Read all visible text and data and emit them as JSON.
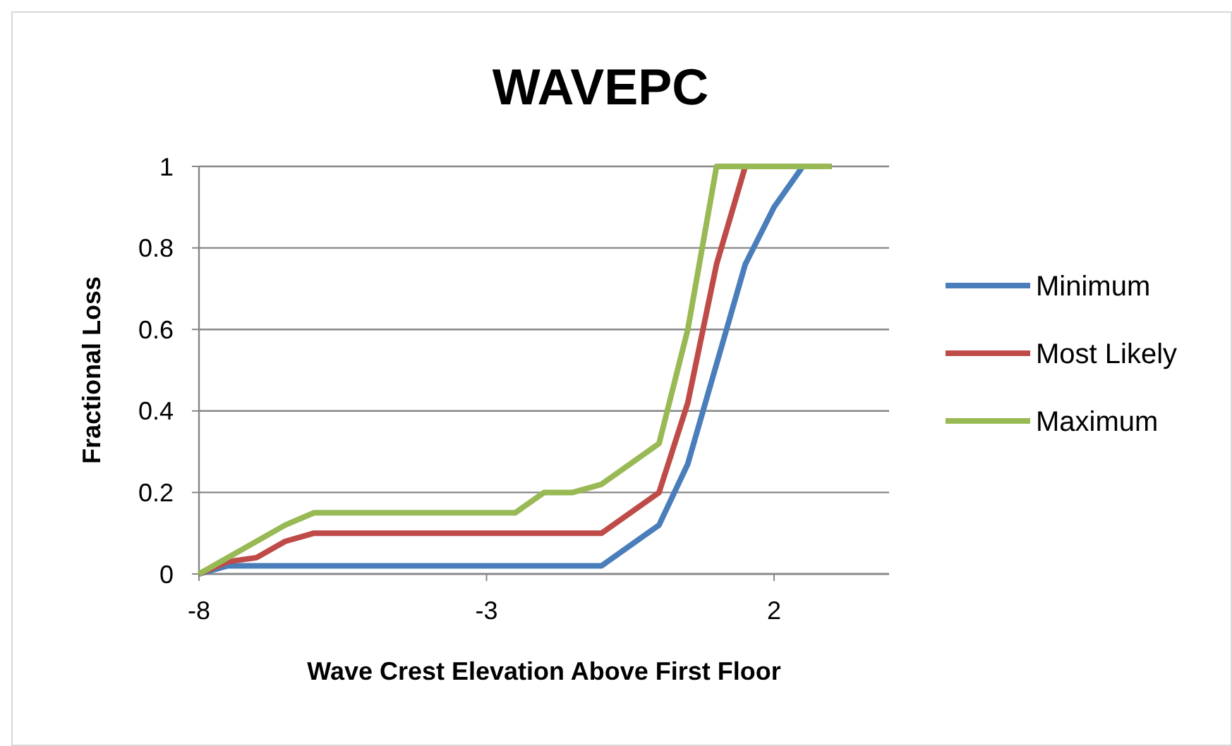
{
  "chart_data": {
    "type": "line",
    "title": "WAVEPC",
    "xlabel": "Wave Crest Elevation Above First Floor",
    "ylabel": "Fractional Loss",
    "xlim": [
      -8,
      4
    ],
    "xticks": [
      -8,
      -3,
      2
    ],
    "ylim": [
      0,
      1
    ],
    "yticks": [
      0,
      0.2,
      0.4,
      0.6,
      0.8,
      1
    ],
    "grid": "y",
    "legend": "right",
    "marker": "none",
    "line_style": "solid",
    "series": [
      {
        "name": "Minimum",
        "color": "#4a7ebb",
        "x": [
          -8,
          -7.5,
          -1,
          0,
          0.5,
          1.5,
          2,
          2.5,
          3
        ],
        "values": [
          0,
          0.02,
          0.02,
          0.12,
          0.27,
          0.76,
          0.9,
          1,
          1
        ]
      },
      {
        "name": "Most Likely",
        "color": "#be4b48",
        "x": [
          -8,
          -7.5,
          -7,
          -6.5,
          -6,
          -1,
          0,
          0.5,
          1,
          1.5,
          3
        ],
        "values": [
          0,
          0.03,
          0.04,
          0.08,
          0.1,
          0.1,
          0.2,
          0.42,
          0.76,
          1,
          1
        ]
      },
      {
        "name": "Maximum",
        "color": "#98b954",
        "x": [
          -8,
          -6.5,
          -6,
          -2.5,
          -2,
          -1.5,
          -1,
          0,
          0.5,
          1,
          3
        ],
        "values": [
          0,
          0.12,
          0.15,
          0.15,
          0.2,
          0.2,
          0.22,
          0.32,
          0.6,
          1,
          1
        ]
      }
    ]
  }
}
